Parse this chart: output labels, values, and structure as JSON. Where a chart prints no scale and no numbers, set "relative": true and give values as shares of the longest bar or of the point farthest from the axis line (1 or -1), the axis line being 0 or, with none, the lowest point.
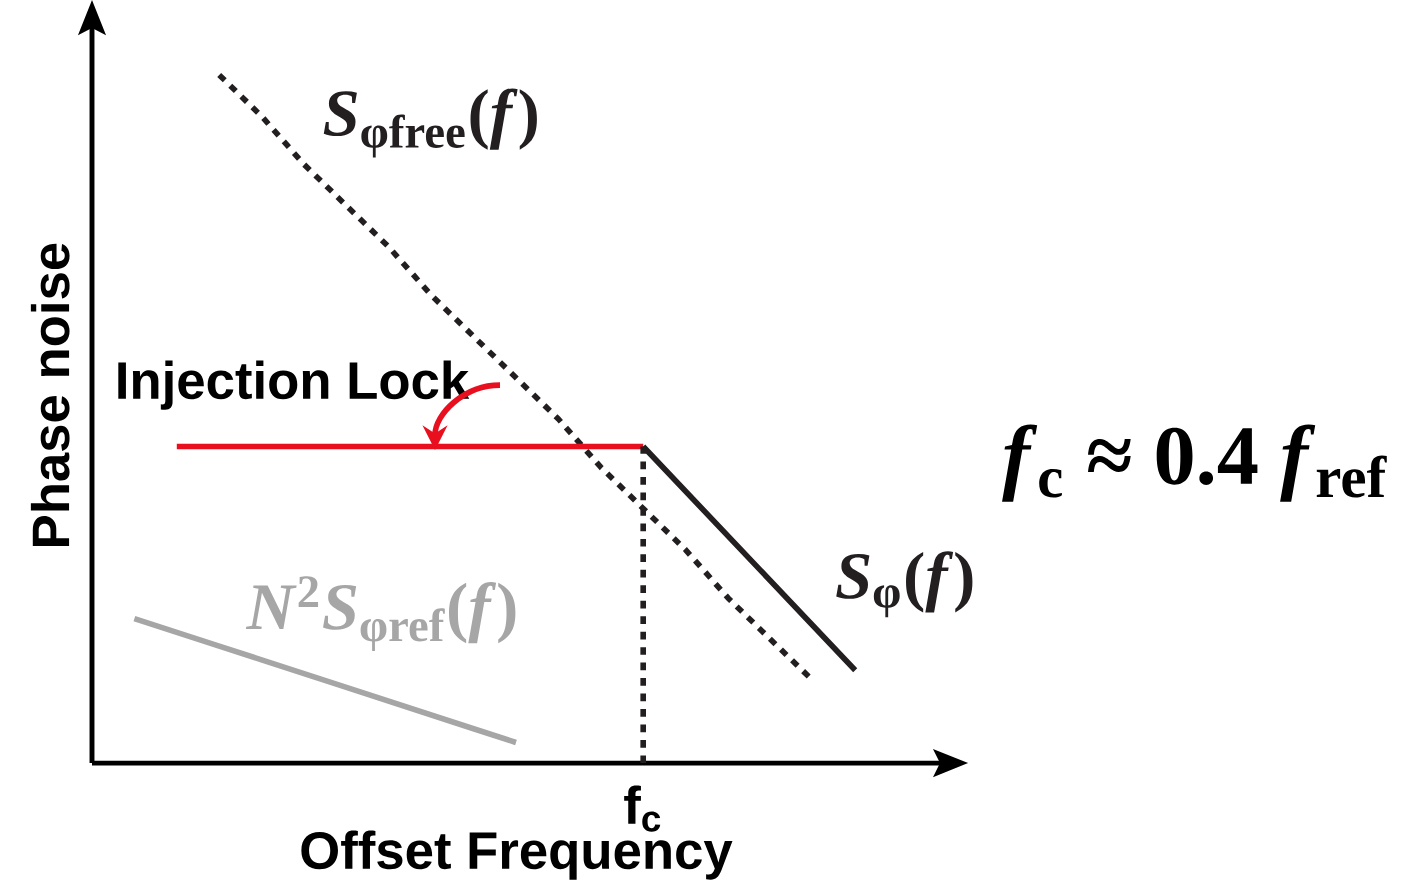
{
  "chart_data": {
    "type": "line",
    "relative": true,
    "xlabel": "Offset Frequency",
    "ylabel": "Phase noise",
    "categories": [
      null,
      null,
      null,
      null,
      null,
      null,
      null,
      null,
      null,
      null,
      null,
      null,
      null,
      null,
      null,
      null,
      null,
      null,
      null,
      null
    ],
    "series": [
      {
        "name": "*S*$_{φfree}$(*f*)",
        "color": "#231f20",
        "line_style": "dotted",
        "values": [
          null,
          null,
          null,
          1.0,
          0.94,
          0.87,
          0.81,
          0.75,
          0.68,
          0.62,
          0.56,
          0.5,
          0.43,
          0.37,
          0.31,
          0.24,
          0.18,
          0.12,
          null,
          null
        ]
      },
      {
        "color": "#e8101f",
        "values": [
          null,
          null,
          0.46,
          0.46,
          0.46,
          0.46,
          0.46,
          0.46,
          0.46,
          0.46,
          0.46,
          0.46,
          0.46,
          0.46,
          null,
          null,
          null,
          null,
          null,
          null
        ]
      },
      {
        "name": "*S*$_{φ}$(*f*)",
        "color": "#231f20",
        "values": [
          null,
          null,
          null,
          null,
          null,
          null,
          null,
          null,
          null,
          null,
          null,
          null,
          null,
          0.46,
          0.395,
          0.33,
          0.265,
          0.2,
          0.135,
          null
        ]
      },
      {
        "name": "*N*$^{2}$*S*$_{φref}$(*f*)",
        "color": "#a6a6a6",
        "values": [
          null,
          0.21,
          0.19,
          0.17,
          0.15,
          0.13,
          0.11,
          0.09,
          0.07,
          0.05,
          0.03,
          null,
          null,
          null,
          null,
          null,
          null,
          null,
          null,
          null
        ]
      }
    ],
    "annotations": [
      "Injection Lock",
      "*f*$_{c}$ ≈ 0.4 *f*$_{ref}$",
      "f$_{c}$"
    ]
  }
}
